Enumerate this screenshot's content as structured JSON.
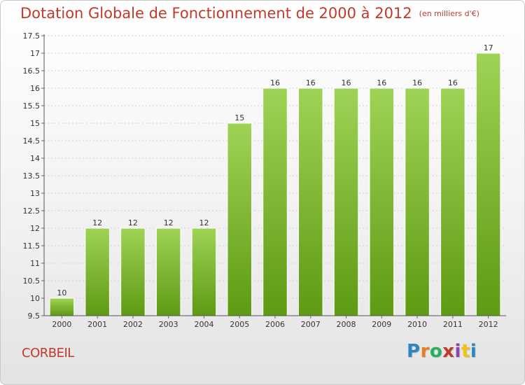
{
  "header": {
    "title": "Dotation Globale de Fonctionnement de 2000 à 2012",
    "subtitle": "(en milliers d'€)"
  },
  "footer": {
    "place": "CORBEIL",
    "brand": "Proxiti",
    "brand_colors": [
      "#2e86c1",
      "#e67e22",
      "#27ae60",
      "#c0392b",
      "#8e44ad",
      "#f1c40f",
      "#2e86c1"
    ]
  },
  "colors": {
    "bar_light": "#9fd356",
    "bar_dark": "#5e9a12",
    "title": "#c0392b"
  },
  "chart_data": {
    "type": "bar",
    "categories": [
      "2000",
      "2001",
      "2002",
      "2003",
      "2004",
      "2005",
      "2006",
      "2007",
      "2008",
      "2009",
      "2010",
      "2011",
      "2012"
    ],
    "values": [
      10,
      12,
      12,
      12,
      12,
      15,
      16,
      16,
      16,
      16,
      16,
      16,
      17
    ],
    "ylim": [
      9.5,
      17.5
    ],
    "yticks": [
      9.5,
      10,
      10.5,
      11,
      11.5,
      12,
      12.5,
      13,
      13.5,
      14,
      14.5,
      15,
      15.5,
      16,
      16.5,
      17,
      17.5
    ],
    "grid": true,
    "data_labels": true
  }
}
